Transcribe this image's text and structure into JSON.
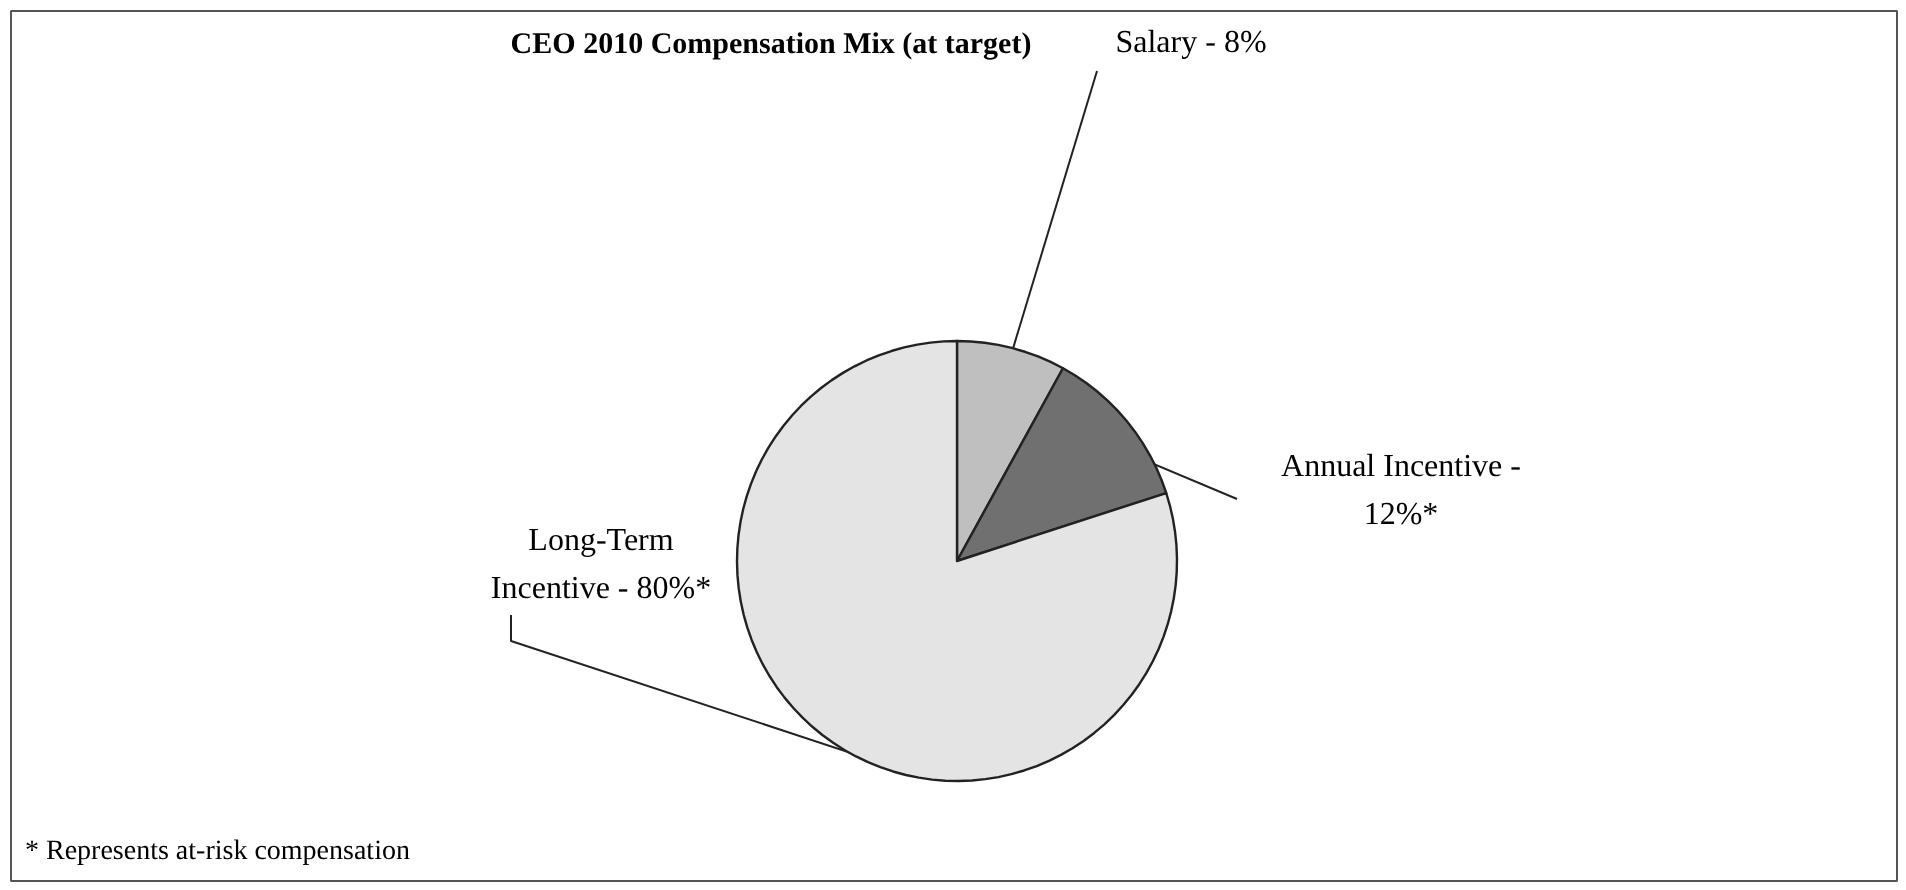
{
  "chart_data": {
    "type": "pie",
    "title": "CEO 2010 Compensation Mix (at target)",
    "categories": [
      "Salary - 8%",
      "Annual Incentive - 12%*",
      "Long-Term Incentive - 80%*"
    ],
    "values": [
      8,
      12,
      80
    ],
    "colors": [
      "#bfbfbf",
      "#707070",
      "#e4e4e4"
    ],
    "annotations": [
      "* Represents at-risk compensation"
    ]
  }
}
